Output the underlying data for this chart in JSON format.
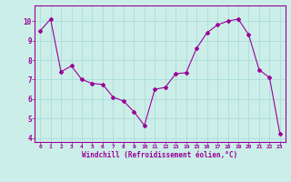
{
  "x": [
    0,
    1,
    2,
    3,
    4,
    5,
    6,
    7,
    8,
    9,
    10,
    11,
    12,
    13,
    14,
    15,
    16,
    17,
    18,
    19,
    20,
    21,
    22,
    23
  ],
  "y": [
    9.5,
    10.1,
    7.4,
    7.7,
    7.0,
    6.8,
    6.75,
    6.1,
    5.9,
    5.35,
    4.65,
    6.5,
    6.6,
    7.3,
    7.35,
    8.6,
    9.4,
    9.8,
    10.0,
    10.1,
    9.3,
    7.5,
    7.1,
    4.2
  ],
  "line_color": "#990099",
  "marker": "D",
  "marker_size": 2,
  "bg_color": "#cceee8",
  "grid_color": "#aaddda",
  "xlabel": "Windchill (Refroidissement éolien,°C)",
  "tick_color": "#990099",
  "ylim": [
    3.8,
    10.8
  ],
  "xlim": [
    -0.5,
    23.5
  ],
  "yticks": [
    4,
    5,
    6,
    7,
    8,
    9,
    10
  ],
  "xticks": [
    0,
    1,
    2,
    3,
    4,
    5,
    6,
    7,
    8,
    9,
    10,
    11,
    12,
    13,
    14,
    15,
    16,
    17,
    18,
    19,
    20,
    21,
    22,
    23
  ]
}
